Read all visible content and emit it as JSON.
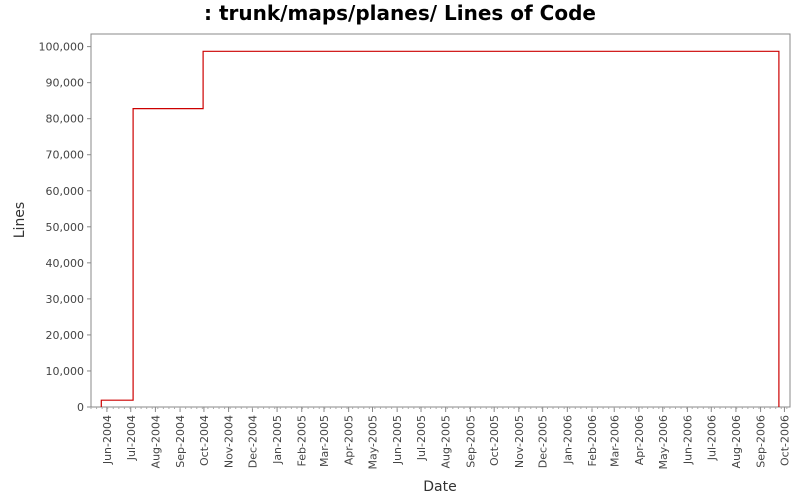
{
  "chart_data": {
    "type": "line",
    "title": ": trunk/maps/planes/ Lines of Code",
    "xlabel": "Date",
    "ylabel": "Lines",
    "x_tick_labels": [
      "Jun-2004",
      "Jul-2004",
      "Aug-2004",
      "Sep-2004",
      "Oct-2004",
      "Nov-2004",
      "Dec-2004",
      "Jan-2005",
      "Feb-2005",
      "Mar-2005",
      "Apr-2005",
      "May-2005",
      "Jun-2005",
      "Jul-2005",
      "Aug-2005",
      "Sep-2005",
      "Oct-2005",
      "Nov-2005",
      "Dec-2005",
      "Jan-2006",
      "Feb-2006",
      "Mar-2006",
      "Apr-2006",
      "May-2006",
      "Jun-2006",
      "Jul-2006",
      "Aug-2006",
      "Sep-2006",
      "Oct-2006"
    ],
    "y_ticks": [
      0,
      10000,
      20000,
      30000,
      40000,
      50000,
      60000,
      70000,
      80000,
      90000,
      100000
    ],
    "y_tick_labels": [
      "0",
      "10,000",
      "20,000",
      "30,000",
      "40,000",
      "50,000",
      "60,000",
      "70,000",
      "80,000",
      "90,000",
      "100,000"
    ],
    "ylim": [
      0,
      103500
    ],
    "xlim": [
      "2004-05-12",
      "2006-10-08"
    ],
    "grid": false,
    "series": [
      {
        "color": "#cc0000",
        "step": true,
        "points": [
          {
            "x": "2004-05-25",
            "y": 0
          },
          {
            "x": "2004-05-25",
            "y": 1900
          },
          {
            "x": "2004-07-04",
            "y": 1900
          },
          {
            "x": "2004-07-04",
            "y": 82800
          },
          {
            "x": "2004-09-30",
            "y": 82800
          },
          {
            "x": "2004-09-30",
            "y": 98700
          },
          {
            "x": "2006-09-24",
            "y": 98700
          },
          {
            "x": "2006-09-24",
            "y": 0
          }
        ]
      }
    ]
  }
}
